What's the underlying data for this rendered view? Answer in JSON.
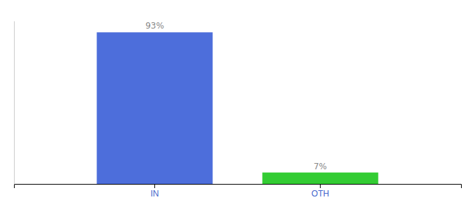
{
  "chart_data": {
    "type": "bar",
    "categories": [
      "IN",
      "OTH"
    ],
    "values": [
      93,
      7
    ],
    "value_labels": [
      "93%",
      "7%"
    ],
    "colors": [
      "#4d6edb",
      "#33cc33"
    ],
    "ylim": [
      0,
      100
    ],
    "data_labels": true,
    "tick_labels": "x"
  }
}
